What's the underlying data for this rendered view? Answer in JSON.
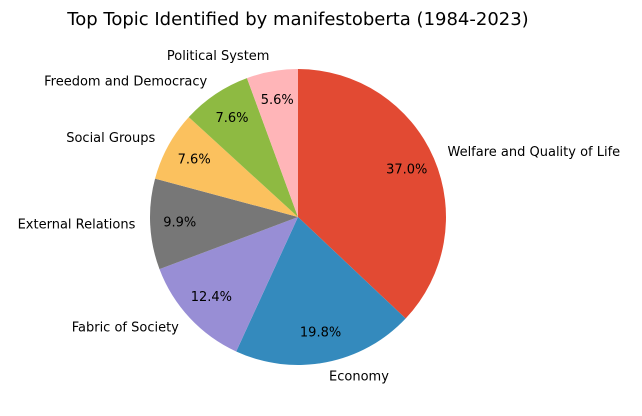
{
  "chart_data": {
    "type": "pie",
    "title": "Top Topic Identified by manifestoberta (1984-2023)",
    "start_angle_deg": 90,
    "direction": "clockwise",
    "slices": [
      {
        "label": "Welfare and Quality of Life",
        "value": 37.0,
        "pct_label": "37.0%",
        "color": "#E24A33"
      },
      {
        "label": "Economy",
        "value": 19.8,
        "pct_label": "19.8%",
        "color": "#348ABD"
      },
      {
        "label": "Fabric of Society",
        "value": 12.4,
        "pct_label": "12.4%",
        "color": "#988ED5"
      },
      {
        "label": "External Relations",
        "value": 9.9,
        "pct_label": "9.9%",
        "color": "#777777"
      },
      {
        "label": "Social Groups",
        "value": 7.6,
        "pct_label": "7.6%",
        "color": "#FBC15E"
      },
      {
        "label": "Freedom and Democracy",
        "value": 7.6,
        "pct_label": "7.6%",
        "color": "#8EBA42"
      },
      {
        "label": "Political System",
        "value": 5.6,
        "pct_label": "5.6%",
        "color": "#FFB5B8"
      }
    ]
  }
}
